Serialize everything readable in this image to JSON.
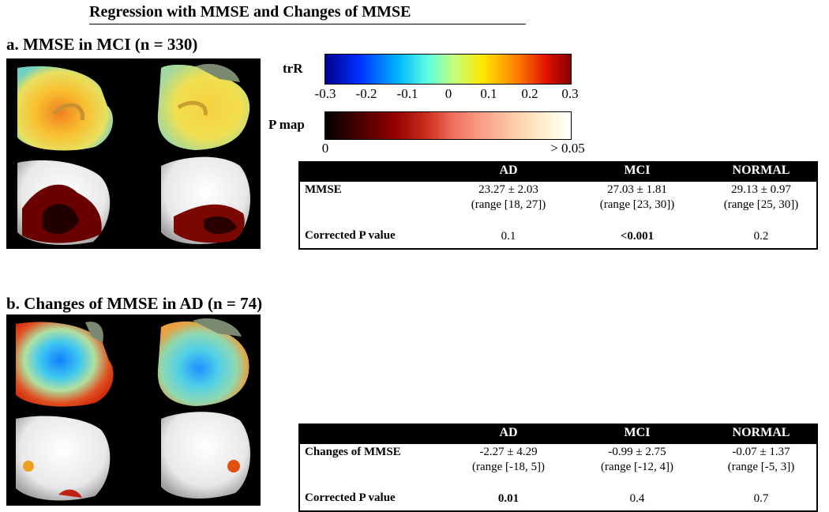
{
  "title": "Regression with MMSE and Changes of MMSE",
  "panel_a": {
    "heading": "a. MMSE in MCI (n = 330)",
    "table": {
      "columns": [
        "AD",
        "MCI",
        "NORMAL"
      ],
      "row1_label": "MMSE",
      "row1": [
        {
          "value": "23.27 ± 2.03",
          "range": "(range [18, 27])"
        },
        {
          "value": "27.03 ± 1.81",
          "range": "(range [23, 30])"
        },
        {
          "value": "29.13 ± 0.97",
          "range": "(range [25, 30])"
        }
      ],
      "row2_label": "Corrected P value",
      "row2": [
        "0.1",
        "<0.001",
        "0.2"
      ]
    }
  },
  "panel_b": {
    "heading": "b. Changes of MMSE in AD (n = 74)",
    "table": {
      "columns": [
        "AD",
        "MCI",
        "NORMAL"
      ],
      "row1_label": "Changes of MMSE",
      "row1": [
        {
          "value": "-2.27 ± 4.29",
          "range": "(range [-18, 5])"
        },
        {
          "value": "-0.99 ± 2.75",
          "range": "(range [-12, 4])"
        },
        {
          "value": "-0.07 ± 1.37",
          "range": "(range [-5, 3])"
        }
      ],
      "row2_label": "Corrected P value",
      "row2": [
        "0.01",
        "0.4",
        "0.7"
      ]
    }
  },
  "colorbars": {
    "trR": {
      "label": "trR",
      "ticks": [
        "-0.3",
        "-0.2",
        "-0.1",
        "0",
        "0.1",
        "0.2",
        "0.3"
      ]
    },
    "pmap": {
      "label": "P map",
      "ticks": [
        "0",
        "> 0.05"
      ]
    }
  },
  "colors": {
    "background": "#ffffff",
    "panel": "#000000",
    "table_header": "#000000"
  }
}
